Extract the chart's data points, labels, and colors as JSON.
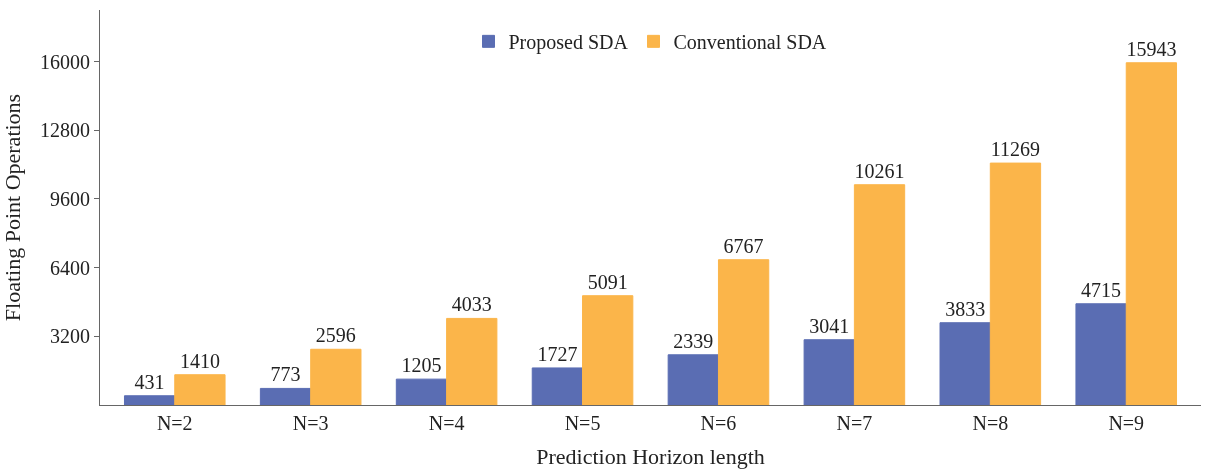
{
  "chart_data": {
    "type": "bar",
    "xlabel": "Prediction Horizon length",
    "ylabel": "Floating Point Operations",
    "categories": [
      "N=2",
      "N=3",
      "N=4",
      "N=5",
      "N=6",
      "N=7",
      "N=8",
      "N=9"
    ],
    "series": [
      {
        "name": "Proposed SDA",
        "color": "#5a6db3",
        "values": [
          431,
          773,
          1205,
          1727,
          2339,
          3041,
          3833,
          4715
        ]
      },
      {
        "name": "Conventional SDA",
        "color": "#fbb54a",
        "values": [
          1410,
          2596,
          4033,
          5091,
          6767,
          10261,
          11269,
          15943
        ]
      }
    ],
    "ylim": [
      0,
      18400
    ],
    "yticks": [
      3200,
      6400,
      9600,
      12800,
      16000
    ],
    "data_labels": true,
    "legend": "top"
  }
}
